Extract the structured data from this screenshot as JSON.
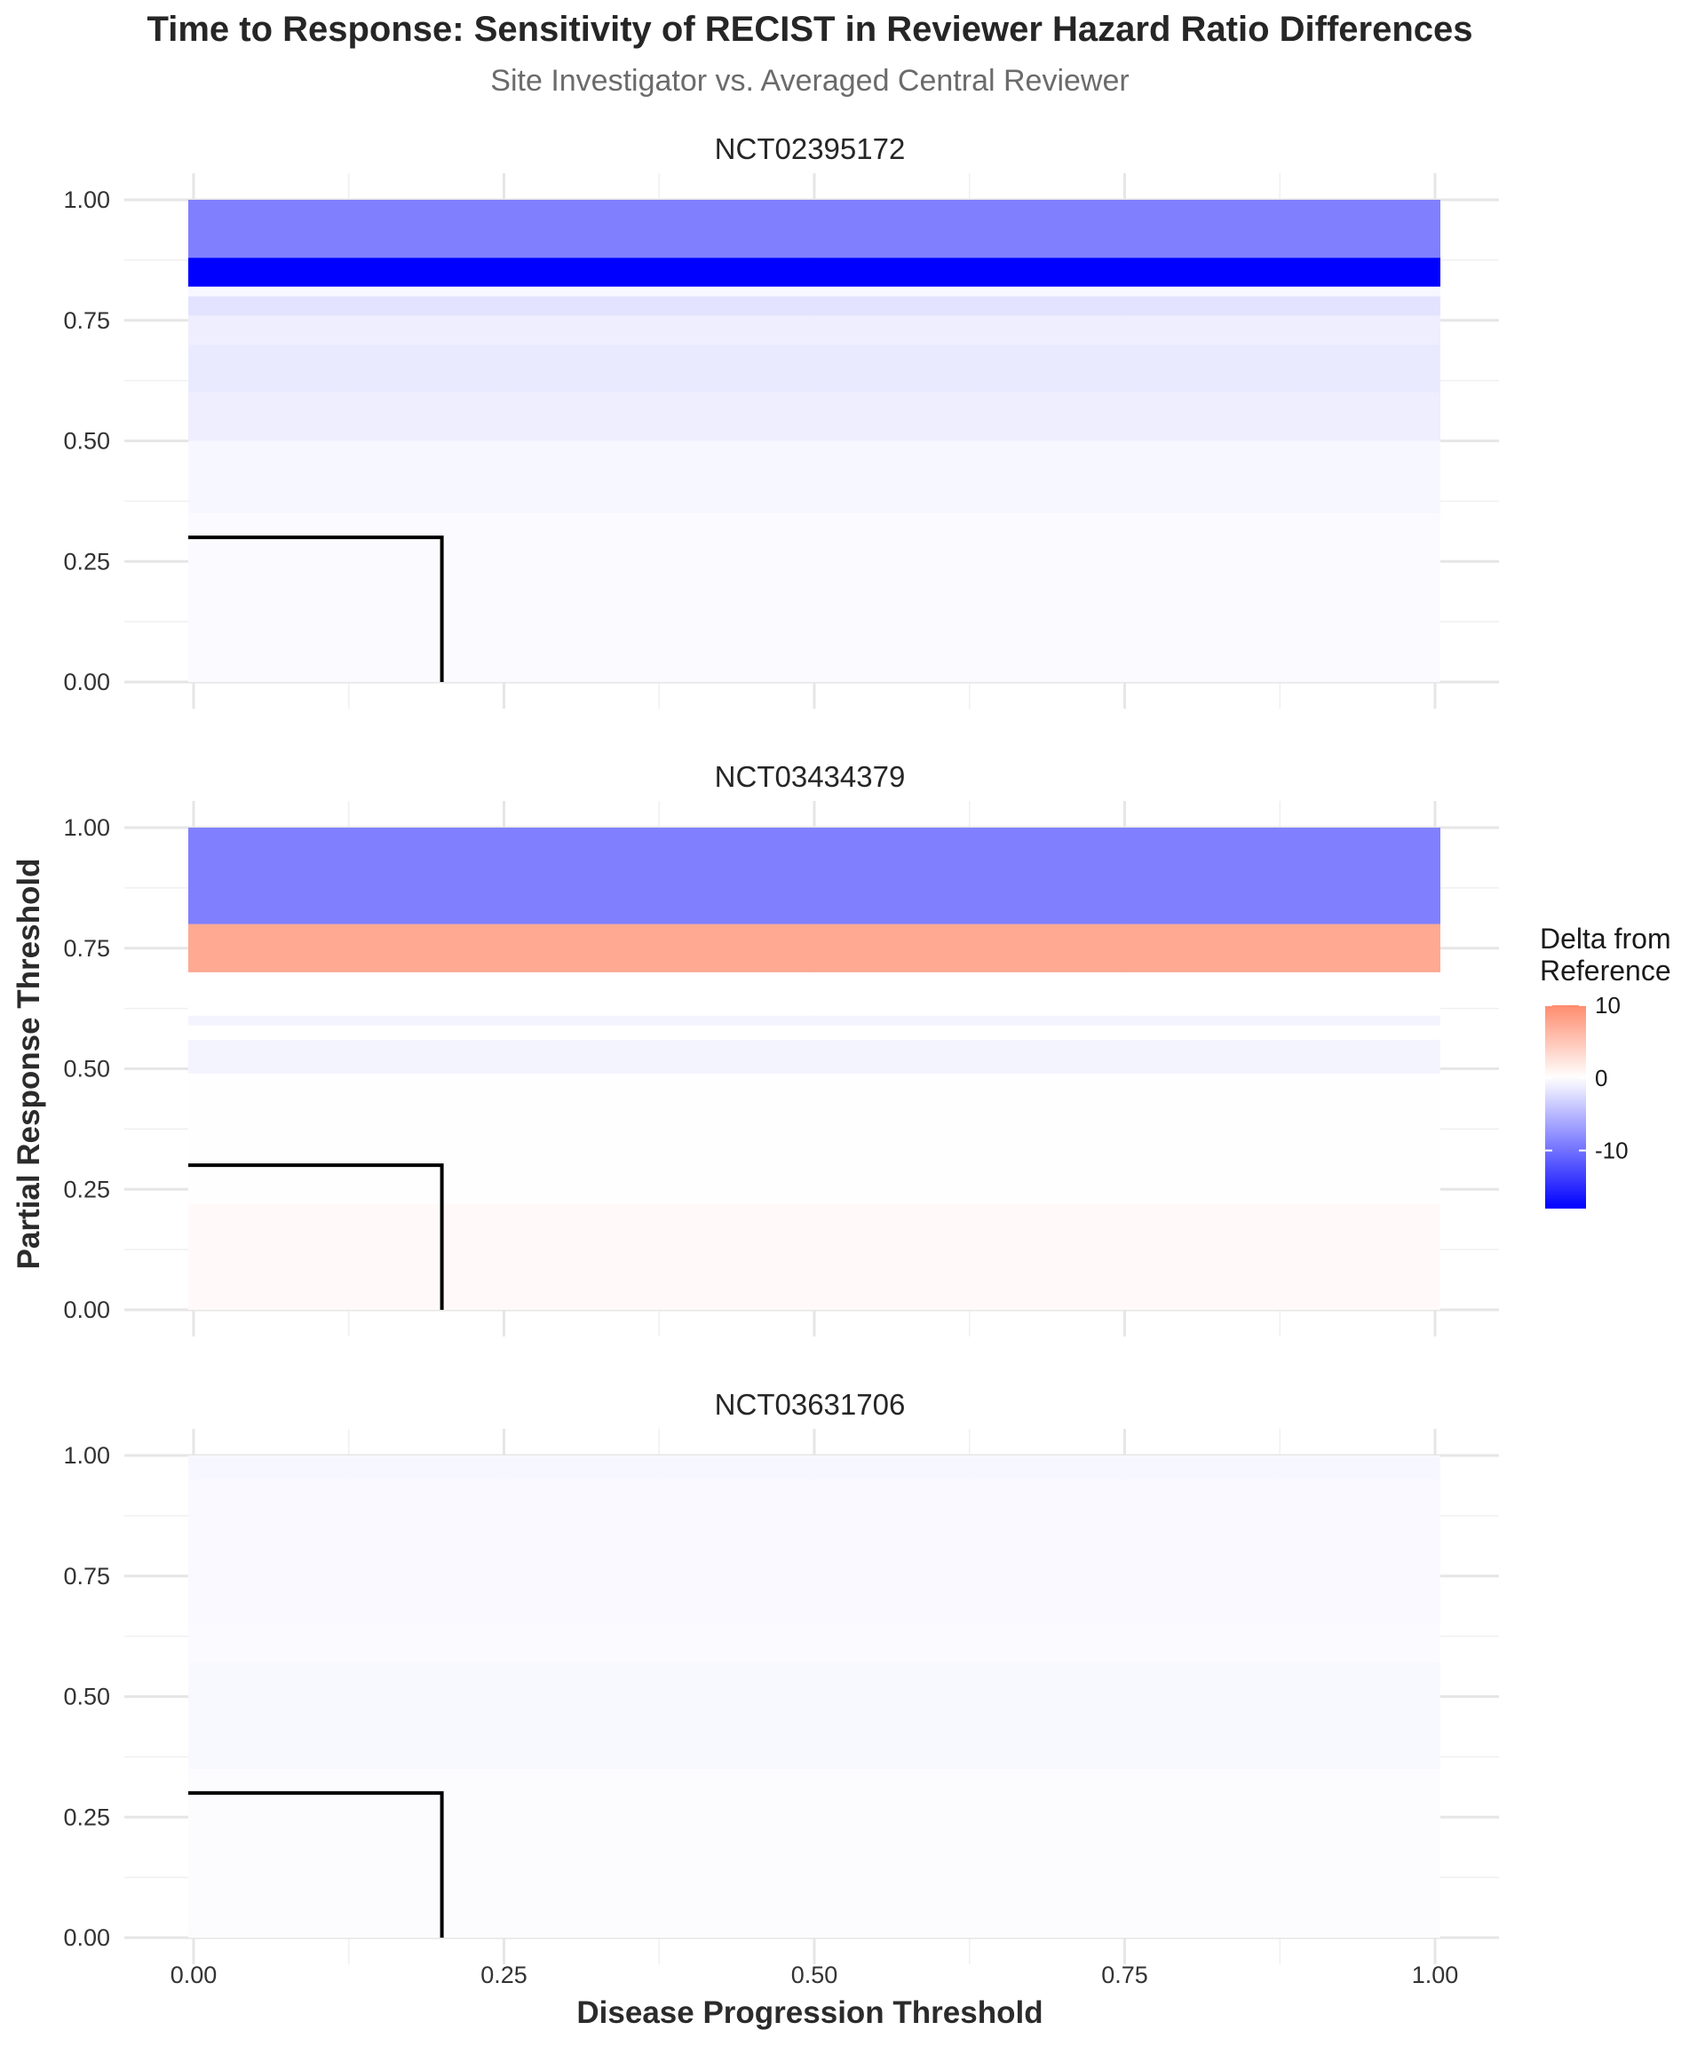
{
  "chart_data": {
    "type": "heatmap",
    "title": "Time to Response: Sensitivity of RECIST in Reviewer Hazard Ratio Differences",
    "subtitle": "Site Investigator vs. Averaged Central Reviewer",
    "xlabel": "Disease Progression Threshold",
    "ylabel": "Partial Response Threshold",
    "xlim": [
      0,
      1
    ],
    "ylim": [
      0,
      1
    ],
    "x_ticks": [
      "0.00",
      "0.25",
      "0.50",
      "0.75",
      "1.00"
    ],
    "y_ticks": [
      "0.00",
      "0.25",
      "0.50",
      "0.75",
      "1.00"
    ],
    "grid": true,
    "legend": {
      "title_line1": "Delta from",
      "title_line2": "Reference",
      "placement": "right",
      "ticks": [
        "10",
        "0",
        "-10"
      ],
      "min": -18,
      "max": 10,
      "low_color": "#0000ff",
      "mid_color": "#ffffff",
      "high_color": "#ff8c6e"
    },
    "reference_line": {
      "x": 0.2,
      "y": 0.3,
      "color": "#000000"
    },
    "panels": [
      {
        "name": "NCT02395172",
        "bands": [
          {
            "y0": 0.0,
            "y1": 0.35,
            "value": -0.3
          },
          {
            "y0": 0.35,
            "y1": 0.5,
            "value": -0.6
          },
          {
            "y0": 0.5,
            "y1": 0.6,
            "value": -1.2
          },
          {
            "y0": 0.6,
            "y1": 0.7,
            "value": -1.5
          },
          {
            "y0": 0.7,
            "y1": 0.76,
            "value": -1.2
          },
          {
            "y0": 0.76,
            "y1": 0.8,
            "value": -2.0
          },
          {
            "y0": 0.8,
            "y1": 0.82,
            "value": -0.6
          },
          {
            "y0": 0.82,
            "y1": 0.88,
            "value": -18.0
          },
          {
            "y0": 0.88,
            "y1": 1.0,
            "value": -9.0
          }
        ]
      },
      {
        "name": "NCT03434379",
        "bands": [
          {
            "y0": 0.0,
            "y1": 0.22,
            "value": 0.4
          },
          {
            "y0": 0.22,
            "y1": 0.49,
            "value": -0.1
          },
          {
            "y0": 0.49,
            "y1": 0.56,
            "value": -0.8
          },
          {
            "y0": 0.56,
            "y1": 0.59,
            "value": 0.0
          },
          {
            "y0": 0.59,
            "y1": 0.61,
            "value": -0.8
          },
          {
            "y0": 0.61,
            "y1": 0.7,
            "value": 0.0
          },
          {
            "y0": 0.7,
            "y1": 0.8,
            "value": 7.5
          },
          {
            "y0": 0.8,
            "y1": 1.0,
            "value": -9.0
          }
        ]
      },
      {
        "name": "NCT03631706",
        "bands": [
          {
            "y0": 0.0,
            "y1": 0.35,
            "value": -0.2
          },
          {
            "y0": 0.35,
            "y1": 0.57,
            "value": -0.5
          },
          {
            "y0": 0.57,
            "y1": 0.65,
            "value": -0.3
          },
          {
            "y0": 0.65,
            "y1": 0.95,
            "value": -0.4
          },
          {
            "y0": 0.95,
            "y1": 1.0,
            "value": -0.6
          }
        ]
      }
    ]
  }
}
